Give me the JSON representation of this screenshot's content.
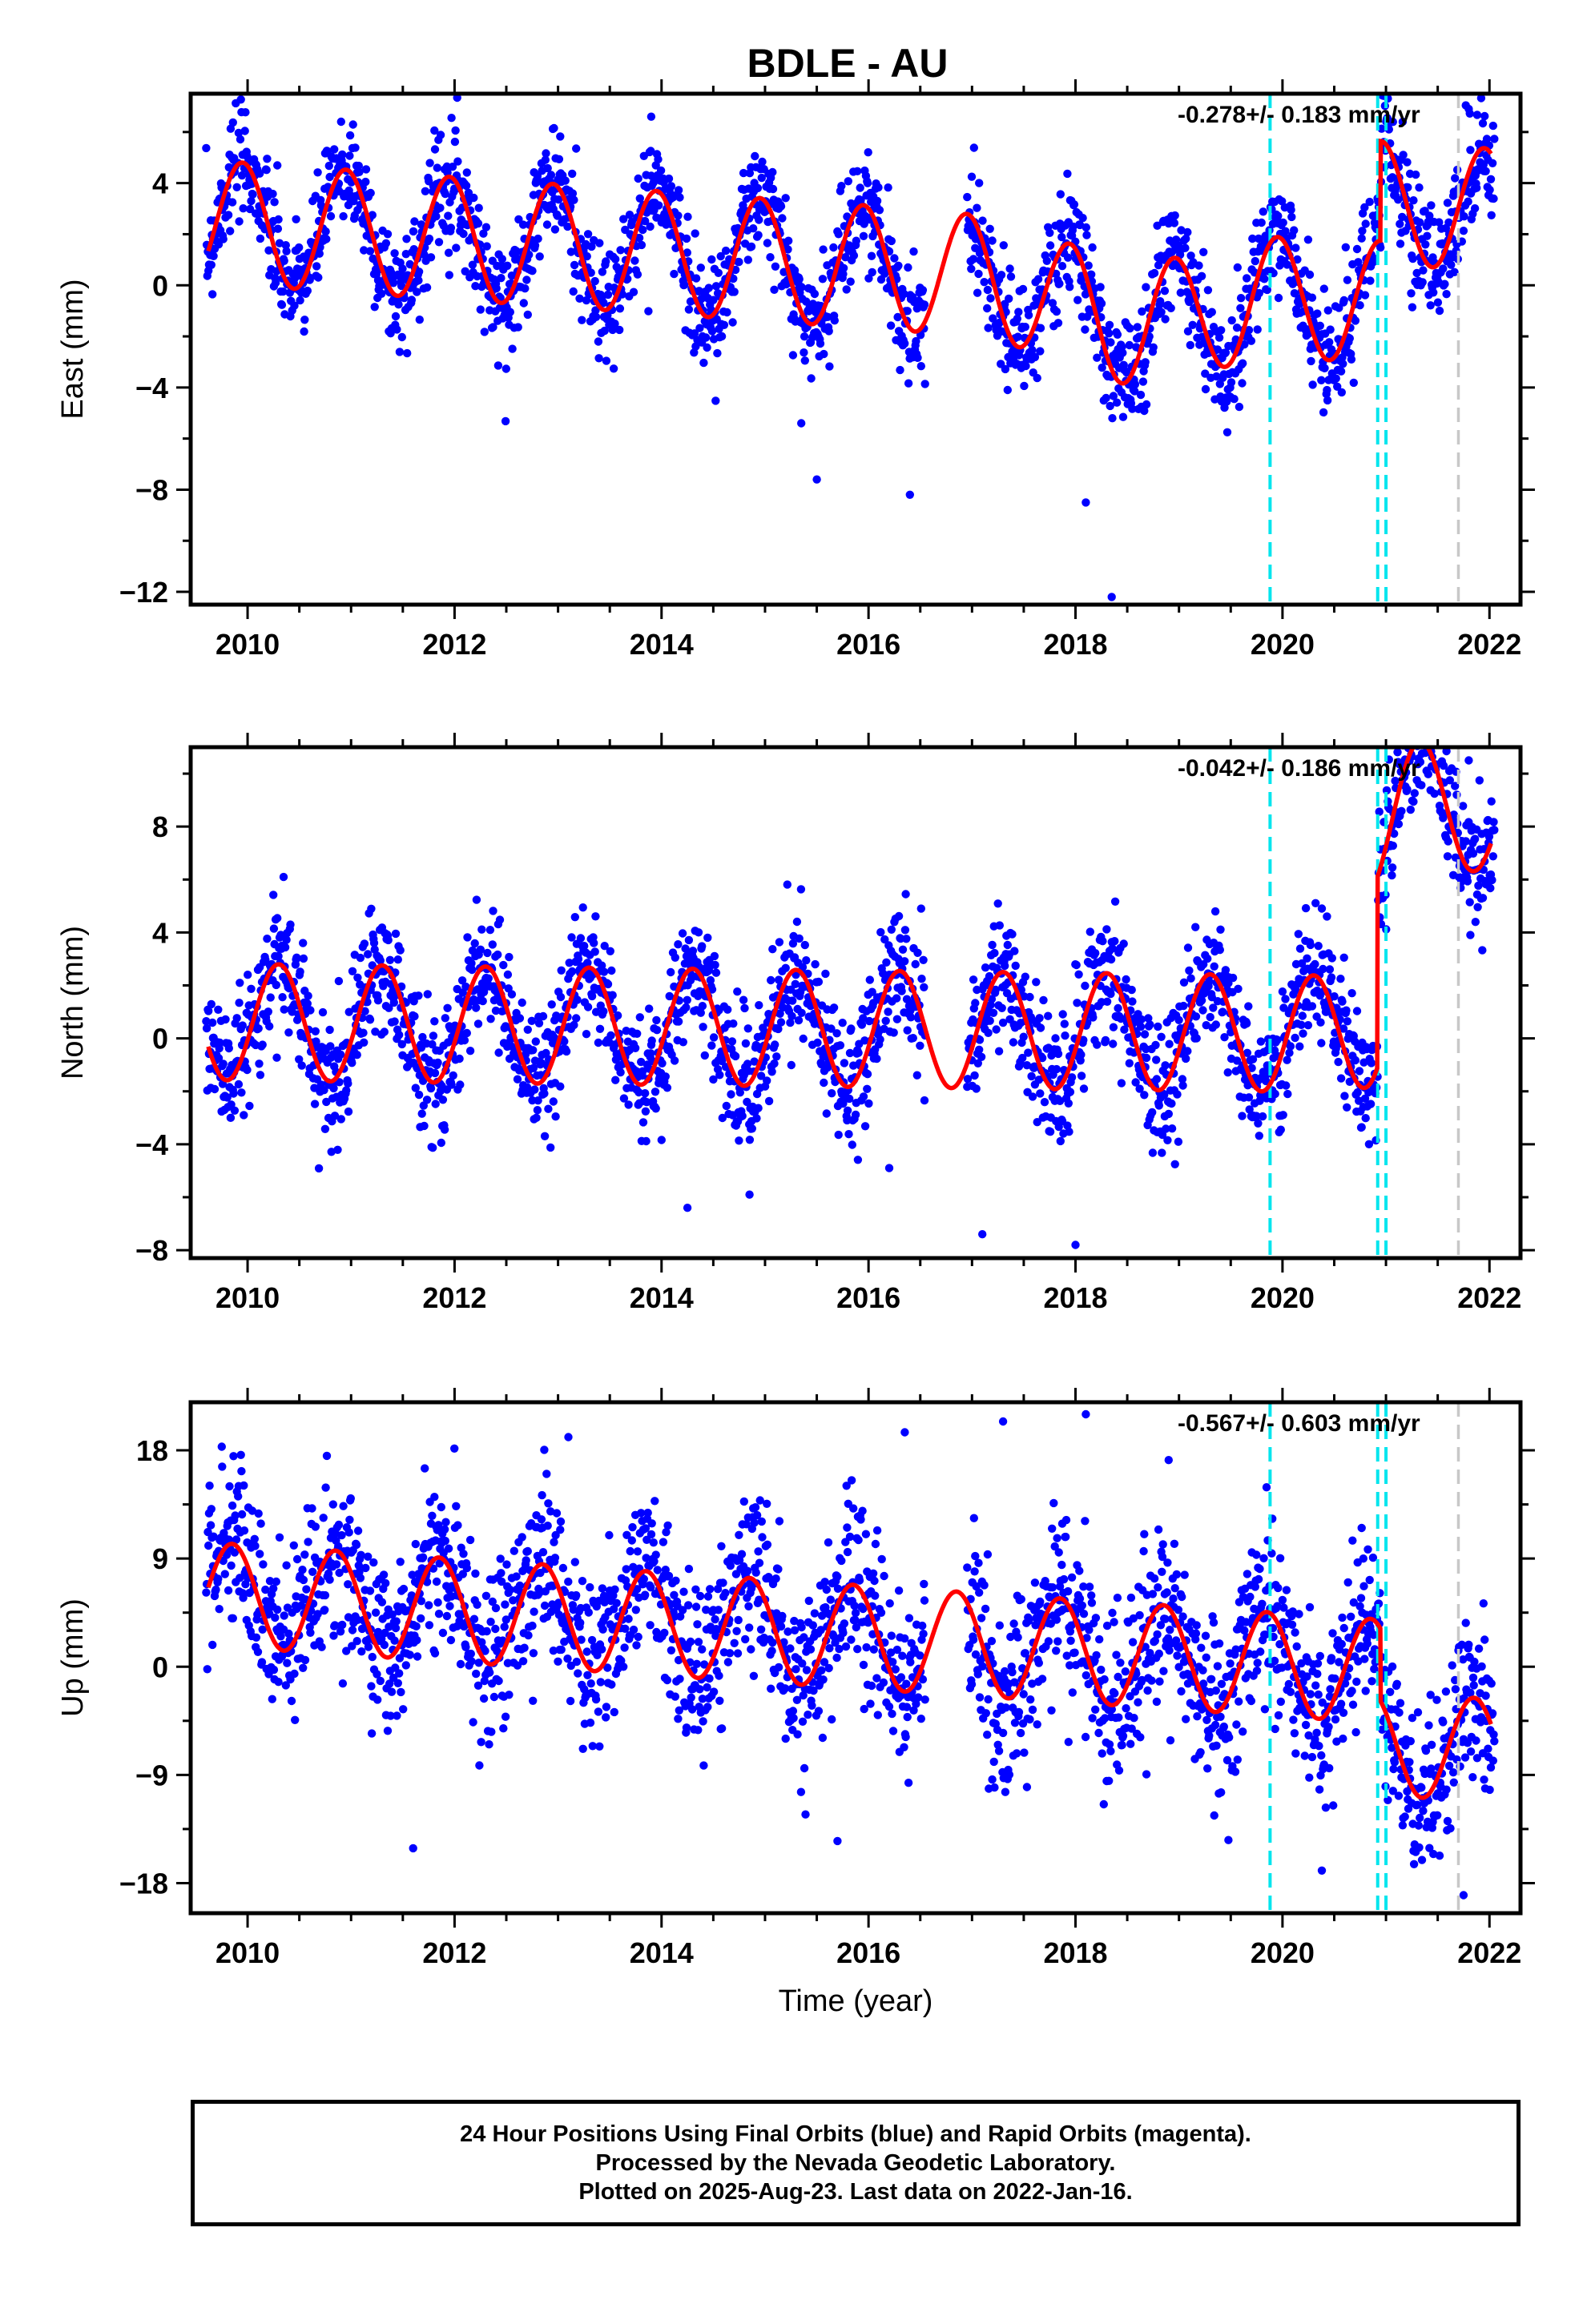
{
  "title": "BDLE - AU",
  "colors": {
    "data": "#0000ff",
    "model": "#ff0000",
    "event_major": "#00e5ee",
    "event_minor": "#c8c8c8"
  },
  "footer": {
    "line1": "24 Hour Positions Using Final Orbits (blue) and Rapid Orbits (magenta).",
    "line2": "Processed by the Nevada Geodetic Laboratory.",
    "line3": "Plotted on 2025-Aug-23. Last data on 2022-Jan-16."
  },
  "chart_data": [
    {
      "type": "scatter",
      "ylabel": "East (mm)",
      "xlabel": "",
      "rate_label": "-0.278+/- 0.183 mm/yr",
      "xlim": [
        2009.45,
        2022.3
      ],
      "ylim": [
        -12.5,
        7.5
      ],
      "xticks": [
        2010,
        2012,
        2014,
        2016,
        2018,
        2020,
        2022
      ],
      "yticks": [
        -12,
        -8,
        -4,
        0,
        4
      ],
      "events_major": [
        2019.88,
        2020.92,
        2021.0
      ],
      "events_minor": [
        2021.7
      ],
      "model": {
        "offset": 1.0,
        "trend": -0.278,
        "amp": 2.4,
        "phase_year": 2009.95,
        "steps": [
          {
            "t": 2020.95,
            "dy": 3.9
          }
        ],
        "humps": [
          {
            "t": 2018.55,
            "amp": -1.5,
            "w": 0.9
          }
        ]
      },
      "scatter_sd": 1.1,
      "outliers": [
        [
          2015.35,
          -5.4
        ],
        [
          2015.5,
          -7.6
        ],
        [
          2016.4,
          -8.2
        ],
        [
          2013.9,
          6.6
        ],
        [
          2018.35,
          -12.2
        ],
        [
          2018.1,
          -8.5
        ],
        [
          2021.8,
          6.9
        ]
      ]
    },
    {
      "type": "scatter",
      "ylabel": "North (mm)",
      "xlabel": "",
      "rate_label": "-0.042+/- 0.186 mm/yr",
      "xlim": [
        2009.45,
        2022.3
      ],
      "ylim": [
        -8.3,
        11.0
      ],
      "xticks": [
        2010,
        2012,
        2014,
        2016,
        2018,
        2020,
        2022
      ],
      "yticks": [
        -8,
        -4,
        0,
        4,
        8
      ],
      "events_major": [
        2019.88,
        2020.92,
        2021.0
      ],
      "events_minor": [
        2021.7
      ],
      "model": {
        "offset": 0.4,
        "trend": -0.042,
        "amp": 2.2,
        "phase_year": 2010.3,
        "steps": [
          {
            "t": 2020.92,
            "dy": 7.2
          }
        ],
        "humps": [
          {
            "t": 2021.5,
            "amp": 2.0,
            "w": 0.45
          }
        ]
      },
      "scatter_sd": 1.2,
      "outliers": [
        [
          2014.25,
          -6.4
        ],
        [
          2014.85,
          -5.9
        ],
        [
          2017.1,
          -7.4
        ],
        [
          2018.0,
          -7.8
        ],
        [
          2016.2,
          -4.9
        ],
        [
          2021.8,
          10.5
        ]
      ]
    },
    {
      "type": "scatter",
      "ylabel": "Up (mm)",
      "xlabel": "Time (year)",
      "rate_label": "-0.567+/- 0.603 mm/yr",
      "xlim": [
        2009.45,
        2022.3
      ],
      "ylim": [
        -20.5,
        22.0
      ],
      "xticks": [
        2010,
        2012,
        2014,
        2016,
        2018,
        2020,
        2022
      ],
      "yticks": [
        -18,
        -9,
        0,
        9,
        18
      ],
      "events_major": [
        2019.88,
        2020.92,
        2021.0
      ],
      "events_minor": [
        2021.7
      ],
      "model": {
        "offset": 3.0,
        "trend": -0.567,
        "amp": 4.3,
        "phase_year": 2009.85,
        "steps": [
          {
            "t": 2020.95,
            "dy": -6.0
          }
        ],
        "humps": []
      },
      "scatter_sd": 3.6,
      "outliers": [
        [
          2009.75,
          18.3
        ],
        [
          2013.1,
          19.1
        ],
        [
          2016.35,
          19.5
        ],
        [
          2018.1,
          21.0
        ],
        [
          2017.3,
          20.4
        ],
        [
          2011.6,
          -15.1
        ],
        [
          2015.7,
          -14.5
        ],
        [
          2021.75,
          -19.0
        ]
      ]
    }
  ]
}
